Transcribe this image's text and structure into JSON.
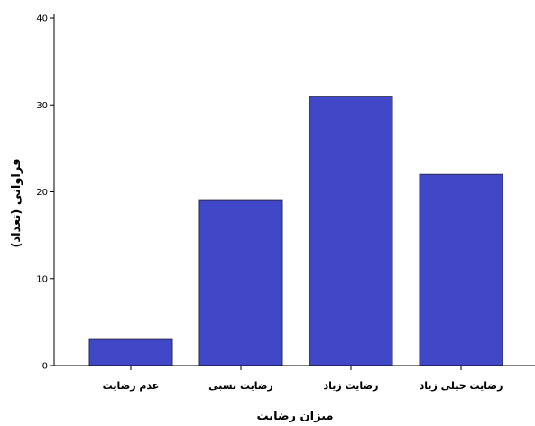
{
  "chart_data": {
    "type": "bar",
    "categories": [
      "عدم رضایت",
      "رضایت نسبی",
      "رضایت زیاد",
      "رضایت خیلی زیاد"
    ],
    "values": [
      3,
      19,
      31,
      22
    ],
    "title": "",
    "xlabel": "میزان رضایت",
    "ylabel": "فراوانی (تعداد)",
    "ylim": [
      0,
      40
    ],
    "yticks": [
      0,
      10,
      20,
      30,
      40
    ],
    "grid": false,
    "legend": "none",
    "bar_color": "#4048c8",
    "bar_border_color": "#2a2a55"
  }
}
